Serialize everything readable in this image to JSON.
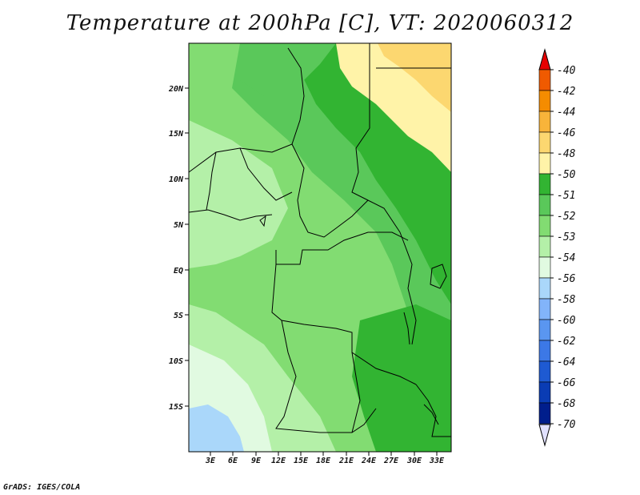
{
  "title": "Temperature at 200hPa [C], VT: 2020060312",
  "credit": "GrADS: IGES/COLA",
  "map": {
    "lat_ticks": [
      "20N",
      "15N",
      "10N",
      "5N",
      "EQ",
      "5S",
      "10S",
      "15S"
    ],
    "lon_ticks": [
      "3E",
      "6E",
      "9E",
      "12E",
      "15E",
      "18E",
      "21E",
      "24E",
      "27E",
      "30E",
      "33E"
    ]
  },
  "colorbar": {
    "labels": [
      "-40",
      "-42",
      "-44",
      "-46",
      "-48",
      "-50",
      "-51",
      "-52",
      "-53",
      "-54",
      "-56",
      "-58",
      "-60",
      "-62",
      "-64",
      "-66",
      "-68",
      "-70"
    ],
    "colors": [
      "#e62d00",
      "#f05a00",
      "#f58c00",
      "#f8b43a",
      "#fcd770",
      "#fff3a8",
      "#32b432",
      "#5ac85a",
      "#82dc72",
      "#b4f0a8",
      "#e1fae1",
      "#aad7fa",
      "#82b4fa",
      "#5a96f0",
      "#3c78e6",
      "#1e5ad2",
      "#0a3cb4",
      "#001e8c",
      "#e1e1ff"
    ],
    "top_arrow_color": "#e60000",
    "bottom_arrow_color": "#e1e1ff"
  }
}
